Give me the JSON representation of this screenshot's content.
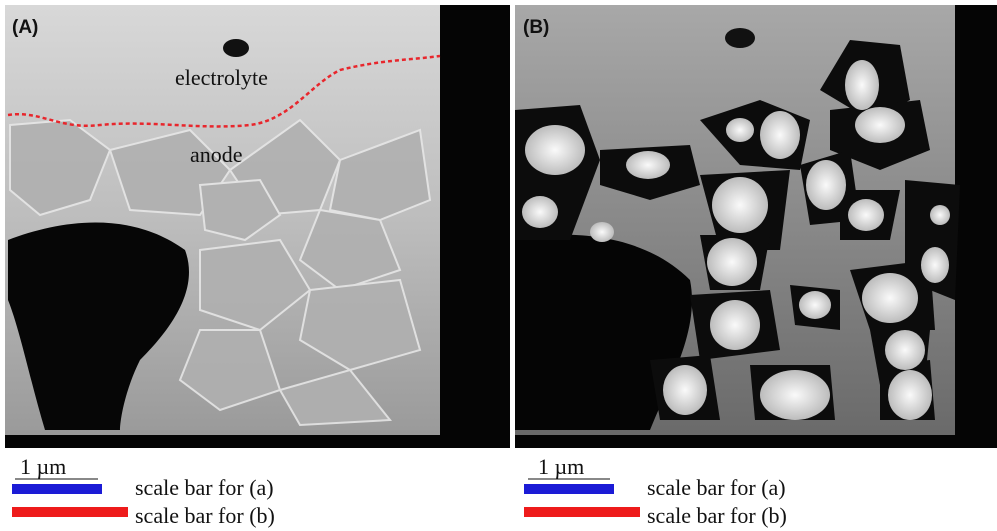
{
  "panels": [
    {
      "label": "(A)",
      "annotations": [
        "electrolyte",
        "anode"
      ],
      "scale_text": "1 µm",
      "legend": [
        "scale bar for (a)",
        "scale bar for (b)"
      ]
    },
    {
      "label": "(B)",
      "scale_text": "1 µm",
      "legend": [
        "scale bar for (a)",
        "scale bar for (b)"
      ]
    }
  ]
}
